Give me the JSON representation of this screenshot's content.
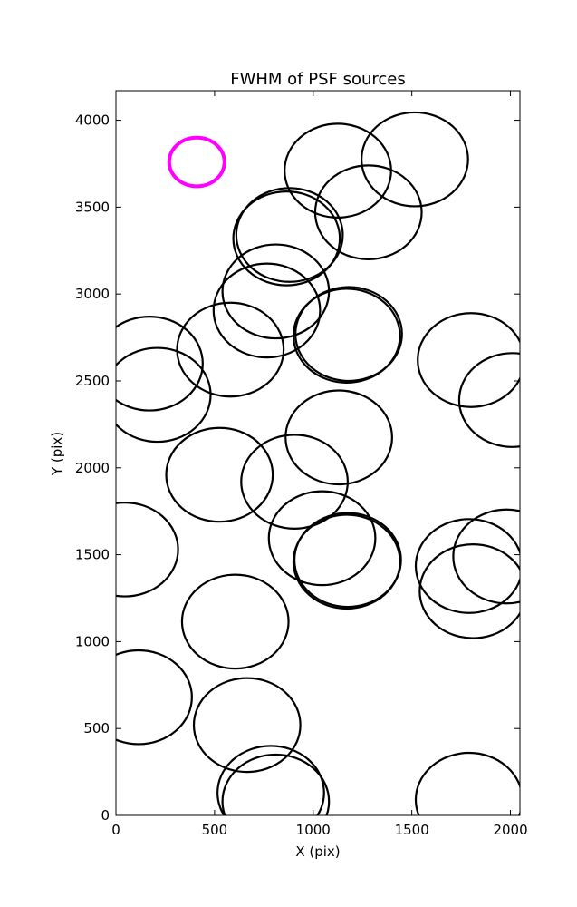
{
  "chart_data": {
    "type": "scatter",
    "title": "FWHM of PSF sources",
    "xlabel": "X (pix)",
    "ylabel": "Y (pix)",
    "xlim": [
      0,
      2048
    ],
    "ylim": [
      0,
      4170
    ],
    "xticks": [
      0,
      500,
      1000,
      1500,
      2000
    ],
    "yticks": [
      0,
      500,
      1000,
      1500,
      2000,
      2500,
      3000,
      3500,
      4000
    ],
    "grid": false,
    "circle_radius_pix": 270,
    "sources": [
      {
        "x": 1125,
        "y": 3710
      },
      {
        "x": 1515,
        "y": 3775
      },
      {
        "x": 1280,
        "y": 3470
      },
      {
        "x": 865,
        "y": 3320
      },
      {
        "x": 880,
        "y": 3340
      },
      {
        "x": 810,
        "y": 3015
      },
      {
        "x": 765,
        "y": 2905
      },
      {
        "x": 580,
        "y": 2680
      },
      {
        "x": 1180,
        "y": 2770
      },
      {
        "x": 1170,
        "y": 2760
      },
      {
        "x": 170,
        "y": 2600
      },
      {
        "x": 210,
        "y": 2420
      },
      {
        "x": 1800,
        "y": 2620
      },
      {
        "x": 2010,
        "y": 2390
      },
      {
        "x": 1130,
        "y": 2175
      },
      {
        "x": 525,
        "y": 1960
      },
      {
        "x": 905,
        "y": 1920
      },
      {
        "x": 1045,
        "y": 1595
      },
      {
        "x": 1175,
        "y": 1470
      },
      {
        "x": 1170,
        "y": 1460
      },
      {
        "x": 45,
        "y": 1530
      },
      {
        "x": 1790,
        "y": 1435
      },
      {
        "x": 1980,
        "y": 1490
      },
      {
        "x": 1810,
        "y": 1290
      },
      {
        "x": 605,
        "y": 1115
      },
      {
        "x": 115,
        "y": 680
      },
      {
        "x": 665,
        "y": 520
      },
      {
        "x": 785,
        "y": 130
      },
      {
        "x": 810,
        "y": 80
      },
      {
        "x": 1790,
        "y": 90
      }
    ],
    "reference": {
      "x": 410,
      "y": 3760,
      "radius_pix": 140,
      "color": "#ff00ff"
    },
    "source_color": "#000000"
  }
}
